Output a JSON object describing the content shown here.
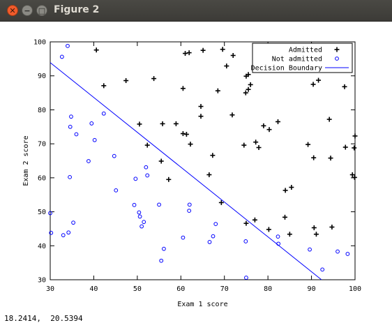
{
  "window": {
    "title": "Figure 2",
    "close_glyph": "✕",
    "minimize_glyph": "−",
    "maximize_glyph": "□"
  },
  "status": {
    "coords": "18.2414,  20.5394"
  },
  "chart_data": {
    "type": "scatter",
    "title": "",
    "xlabel": "Exam 1 score",
    "ylabel": "Exam 2 score",
    "xlim": [
      30,
      100
    ],
    "ylim": [
      30,
      100
    ],
    "xticks": [
      30,
      40,
      50,
      60,
      70,
      80,
      90,
      100
    ],
    "yticks": [
      30,
      40,
      50,
      60,
      70,
      80,
      90,
      100
    ],
    "grid": false,
    "legend_position": "top-right",
    "series": [
      {
        "name": "Admitted",
        "marker": "plus",
        "color": "#000000",
        "points": [
          [
            40.6,
            97.6
          ],
          [
            42.3,
            87.1
          ],
          [
            47.4,
            88.6
          ],
          [
            53.8,
            89.2
          ],
          [
            55.8,
            75.9
          ],
          [
            60.5,
            86.3
          ],
          [
            61.0,
            96.6
          ],
          [
            61.9,
            96.8
          ],
          [
            65.1,
            97.5
          ],
          [
            69.6,
            97.8
          ],
          [
            70.5,
            92.9
          ],
          [
            72.0,
            96.0
          ],
          [
            78.7,
            96.8
          ],
          [
            80.3,
            91.6
          ],
          [
            80.5,
            91.9
          ],
          [
            75.0,
            89.9
          ],
          [
            75.5,
            90.4
          ],
          [
            75.5,
            86.0
          ],
          [
            74.9,
            85.0
          ],
          [
            76.0,
            87.4
          ],
          [
            68.5,
            85.6
          ],
          [
            64.6,
            81.0
          ],
          [
            64.6,
            78.1
          ],
          [
            71.8,
            78.5
          ],
          [
            50.5,
            75.8
          ],
          [
            58.9,
            75.9
          ],
          [
            60.5,
            73.0
          ],
          [
            61.3,
            72.8
          ],
          [
            62.2,
            69.9
          ],
          [
            52.3,
            69.6
          ],
          [
            67.3,
            66.6
          ],
          [
            74.5,
            69.6
          ],
          [
            77.2,
            70.5
          ],
          [
            77.9,
            68.9
          ],
          [
            79.0,
            75.3
          ],
          [
            80.3,
            74.2
          ],
          [
            82.3,
            76.5
          ],
          [
            89.2,
            69.8
          ],
          [
            90.5,
            65.9
          ],
          [
            94.1,
            77.2
          ],
          [
            94.4,
            65.8
          ],
          [
            97.8,
            69.0
          ],
          [
            99.8,
            68.8
          ],
          [
            100.0,
            72.3
          ],
          [
            99.4,
            60.9
          ],
          [
            97.6,
            86.8
          ],
          [
            90.4,
            87.5
          ],
          [
            91.6,
            88.7
          ],
          [
            66.5,
            60.9
          ],
          [
            57.2,
            59.5
          ],
          [
            69.3,
            52.7
          ],
          [
            84.0,
            56.3
          ],
          [
            85.4,
            57.2
          ],
          [
            75.0,
            46.6
          ],
          [
            77.0,
            47.6
          ],
          [
            80.2,
            44.8
          ],
          [
            83.9,
            48.4
          ],
          [
            85.0,
            43.4
          ],
          [
            90.6,
            45.3
          ],
          [
            91.1,
            43.4
          ],
          [
            94.7,
            45.5
          ],
          [
            55.5,
            64.9
          ],
          [
            99.9,
            60.1
          ]
        ]
      },
      {
        "name": "Not admitted",
        "marker": "circle",
        "color": "#0000ff",
        "points": [
          [
            32.7,
            95.6
          ],
          [
            34.0,
            98.8
          ],
          [
            42.3,
            78.9
          ],
          [
            34.6,
            75.0
          ],
          [
            34.8,
            78.0
          ],
          [
            36.0,
            72.8
          ],
          [
            39.5,
            76.0
          ],
          [
            40.2,
            71.1
          ],
          [
            44.7,
            66.4
          ],
          [
            38.8,
            64.9
          ],
          [
            52.0,
            63.1
          ],
          [
            49.6,
            59.7
          ],
          [
            52.3,
            60.7
          ],
          [
            34.5,
            60.2
          ],
          [
            45.1,
            56.3
          ],
          [
            30.0,
            49.6
          ],
          [
            30.2,
            43.8
          ],
          [
            33.0,
            43.1
          ],
          [
            34.2,
            43.9
          ],
          [
            35.3,
            46.8
          ],
          [
            49.3,
            52.0
          ],
          [
            50.4,
            49.8
          ],
          [
            50.6,
            48.6
          ],
          [
            51.0,
            45.7
          ],
          [
            51.5,
            47.0
          ],
          [
            55.0,
            52.1
          ],
          [
            56.1,
            39.1
          ],
          [
            55.5,
            35.6
          ],
          [
            60.5,
            42.4
          ],
          [
            62.0,
            52.1
          ],
          [
            61.9,
            50.3
          ],
          [
            66.6,
            41.1
          ],
          [
            67.4,
            42.8
          ],
          [
            68.0,
            46.4
          ],
          [
            74.9,
            41.3
          ],
          [
            75.0,
            30.6
          ],
          [
            82.3,
            42.7
          ],
          [
            82.4,
            40.6
          ],
          [
            89.6,
            38.9
          ],
          [
            96.0,
            38.3
          ],
          [
            92.5,
            33.0
          ],
          [
            98.3,
            37.6
          ]
        ]
      },
      {
        "name": "Decision Boundary",
        "marker": "line",
        "color": "#0000ff",
        "points": [
          [
            30,
            93.9
          ],
          [
            92.3,
            30
          ]
        ]
      }
    ]
  }
}
